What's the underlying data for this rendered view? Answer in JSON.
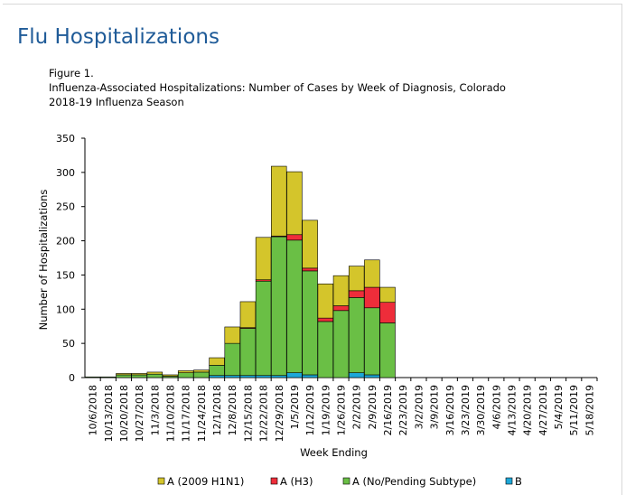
{
  "page": {
    "title": "Flu Hospitalizations",
    "figure_label": "Figure 1.",
    "caption_line1": "Influenza-Associated Hospitalizations: Number of  Cases by Week of Diagnosis, Colorado",
    "caption_line2": "2018-19  Influenza Season"
  },
  "chart_data": {
    "type": "bar",
    "stacked": true,
    "title": "Influenza-Associated Hospitalizations: Number of  Cases by Week of Diagnosis, Colorado 2018-19  Influenza Season",
    "xlabel": "Week Ending",
    "ylabel": "Number of Hospitalizations",
    "ylim": [
      0,
      350
    ],
    "yticks": [
      0,
      50,
      100,
      150,
      200,
      250,
      300,
      350
    ],
    "grid": false,
    "legend_position": "bottom",
    "categories": [
      "10/6/2018",
      "10/13/2018",
      "10/20/2018",
      "10/27/2018",
      "11/3/2018",
      "11/10/2018",
      "11/17/2018",
      "11/24/2018",
      "12/1/2018",
      "12/8/2018",
      "12/15/2018",
      "12/22/2018",
      "12/29/2018",
      "1/5/2019",
      "1/12/2019",
      "1/19/2019",
      "1/26/2019",
      "2/2/2019",
      "2/9/2019",
      "2/16/2019",
      "2/23/2019",
      "3/2/2019",
      "3/9/2019",
      "3/16/2019",
      "3/23/2019",
      "3/30/2019",
      "4/6/2019",
      "4/13/2019",
      "4/20/2019",
      "4/27/2019",
      "5/4/2019",
      "5/11/2019",
      "5/18/2019"
    ],
    "series": [
      {
        "name": "B",
        "color": "#1ca7d8",
        "values": [
          0,
          0,
          0,
          0,
          0,
          0,
          0,
          0,
          3,
          3,
          3,
          3,
          3,
          7,
          4,
          0,
          0,
          7,
          4,
          0,
          0,
          0,
          0,
          0,
          0,
          0,
          0,
          0,
          0,
          0,
          0,
          0,
          0
        ]
      },
      {
        "name": "A (No/Pending Subtype)",
        "color": "#6abf45",
        "values": [
          1,
          1,
          4,
          4,
          5,
          2,
          7,
          8,
          15,
          47,
          69,
          138,
          203,
          194,
          152,
          82,
          98,
          110,
          98,
          80,
          0,
          0,
          0,
          0,
          0,
          0,
          0,
          0,
          0,
          0,
          0,
          0,
          0
        ]
      },
      {
        "name": "A (H3)",
        "color": "#ee2d3a",
        "values": [
          0,
          0,
          0,
          0,
          0,
          0,
          0,
          0,
          0,
          0,
          1,
          2,
          1,
          8,
          4,
          5,
          7,
          10,
          30,
          30,
          0,
          0,
          0,
          0,
          0,
          0,
          0,
          0,
          0,
          0,
          0,
          0,
          0
        ]
      },
      {
        "name": "A (2009 H1N1)",
        "color": "#d4c52b",
        "values": [
          0,
          0,
          2,
          2,
          3,
          2,
          3,
          3,
          11,
          24,
          38,
          62,
          102,
          92,
          70,
          50,
          44,
          36,
          40,
          22,
          0,
          0,
          0,
          0,
          0,
          0,
          0,
          0,
          0,
          0,
          0,
          0,
          0
        ]
      }
    ],
    "legend": [
      {
        "name": "A (2009 H1N1)",
        "color": "#d4c52b"
      },
      {
        "name": "A (H3)",
        "color": "#ee2d3a"
      },
      {
        "name": "A (No/Pending Subtype)",
        "color": "#6abf45"
      },
      {
        "name": "B",
        "color": "#1ca7d8"
      }
    ]
  }
}
